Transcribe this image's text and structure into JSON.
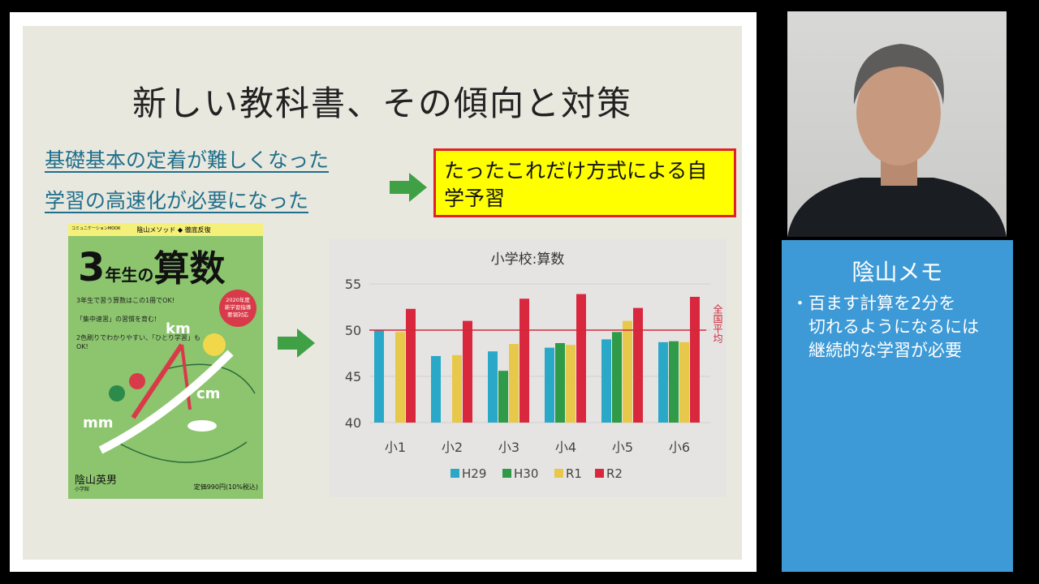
{
  "slide": {
    "title": "新しい教科書、その傾向と対策",
    "points": [
      "基礎基本の定着が難しくなった",
      "学習の高速化が必要になった"
    ],
    "highlight": "たったこれだけ方式による自学予習",
    "arrow_color": "#3fa046"
  },
  "book": {
    "series_label": "コミュニケーションMOOK",
    "header": "陰山メソッド ◆ 徹底反復",
    "title_num": "3",
    "title_mid": "年生の",
    "title_main": "算数",
    "badge": "2020年度 新学習指導要領対応",
    "bullets": [
      "3年生で習う算数はこの1冊でOK!",
      "「集中速習」の習慣を育む!",
      "2色刷りでわかりやすい、「ひとり学習」もOK!"
    ],
    "units": [
      "km",
      "cm",
      "mm"
    ],
    "author": "陰山英男",
    "publisher": "小学館",
    "price": "定価990円(10%税込)"
  },
  "chart_data": {
    "type": "bar",
    "title": "小学校:算数",
    "categories": [
      "小1",
      "小2",
      "小3",
      "小4",
      "小5",
      "小6"
    ],
    "ylim": [
      40,
      55
    ],
    "yticks": [
      40,
      45,
      50,
      55
    ],
    "grid": true,
    "legend": "bottom",
    "reference_line": {
      "value": 50,
      "label": "全国平均",
      "color": "#d0293c"
    },
    "series": [
      {
        "name": "H29",
        "color": "#2aa8c8",
        "values": [
          50.0,
          47.2,
          47.7,
          48.1,
          49.0,
          48.7
        ]
      },
      {
        "name": "H30",
        "color": "#2f9a48",
        "values": [
          null,
          null,
          45.6,
          48.6,
          49.8,
          48.8
        ]
      },
      {
        "name": "R1",
        "color": "#e8c84a",
        "values": [
          49.8,
          47.3,
          48.5,
          48.4,
          51.0,
          48.7
        ]
      },
      {
        "name": "R2",
        "color": "#d9283e",
        "values": [
          52.3,
          51.0,
          53.4,
          53.9,
          52.4,
          53.6
        ]
      }
    ]
  },
  "memo": {
    "title": "陰山メモ",
    "lines": [
      "・百ます計算を2分を",
      "　切れるようになるには",
      "　継続的な学習が必要"
    ]
  }
}
